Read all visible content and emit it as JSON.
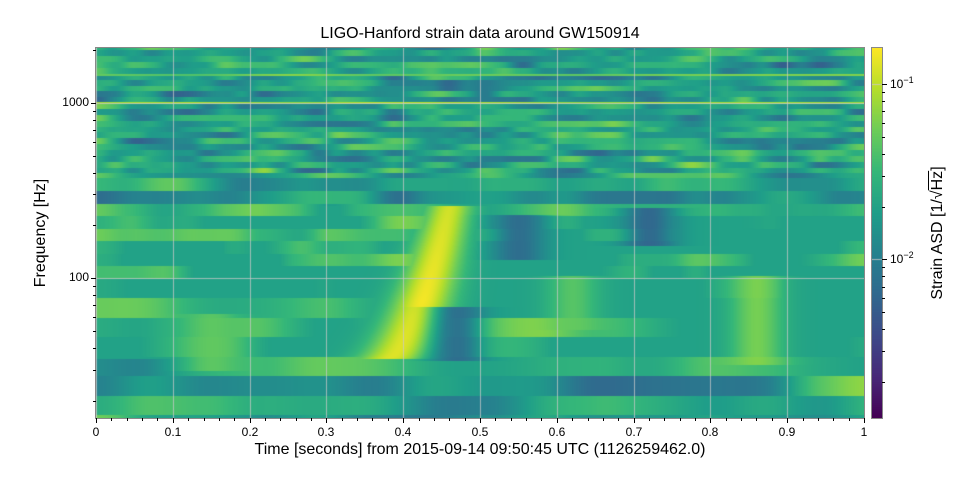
{
  "chart_data": {
    "type": "heatmap",
    "title": "LIGO-Hanford strain data around GW150914",
    "xlabel": "Time [seconds] from 2015-09-14 09:50:45 UTC (1126259462.0)",
    "ylabel": "Frequency [Hz]",
    "colorbar_label_prefix": "Strain ASD [1/",
    "colorbar_label_sqrt": "Hz",
    "colorbar_label_suffix": "]",
    "colormap": "viridis",
    "xlim": [
      0,
      1
    ],
    "ylim": [
      16,
      2048
    ],
    "yscale": "log",
    "clim": [
      0.00125,
      0.16
    ],
    "cscale": "log",
    "grid": true,
    "x_ticks": [
      0,
      0.1,
      0.2,
      0.3,
      0.4,
      0.5,
      0.6,
      0.7,
      0.8,
      0.9,
      1
    ],
    "x_tick_labels": [
      "0",
      "0.1",
      "0.2",
      "0.3",
      "0.4",
      "0.5",
      "0.6",
      "0.7",
      "0.8",
      "0.9",
      "1"
    ],
    "y_ticks": [
      100,
      1000
    ],
    "y_tick_labels": [
      "100",
      "1000"
    ],
    "colorbar_ticks": [
      0.01,
      0.1
    ],
    "colorbar_tick_labels": [
      {
        "base": "10",
        "exp": "−2"
      },
      {
        "base": "10",
        "exp": "−1"
      }
    ],
    "features": [
      {
        "name": "chirp",
        "description": "bright yellow chirp rising from ~35 Hz to ~250 Hz",
        "t_start": 0.3,
        "t_end": 0.44,
        "f_start": 35,
        "f_end": 260,
        "peak_value": 0.15,
        "peak_time": 0.39,
        "peak_freq": 75
      },
      {
        "name": "line-1000Hz",
        "description": "persistent narrow line near 1000 Hz",
        "freq": 1000,
        "value": 0.1
      },
      {
        "name": "line-1450Hz",
        "description": "persistent narrow line near 1450 Hz",
        "freq": 1450,
        "value": 0.08
      },
      {
        "name": "blob-0.86s",
        "description": "green vertical blob at ~0.86 s, 40-90 Hz",
        "time": 0.86,
        "f_low": 38,
        "f_high": 90,
        "value": 0.07
      },
      {
        "name": "blob-0.15s",
        "description": "green blob at ~0.15 s, 35-55 Hz",
        "time": 0.15,
        "f_low": 35,
        "f_high": 55,
        "value": 0.05
      },
      {
        "name": "blob-0.62s",
        "description": "green blob at ~0.62 s, 60-90 Hz",
        "time": 0.62,
        "f_low": 60,
        "f_high": 90,
        "value": 0.05
      },
      {
        "name": "dark-0.47s",
        "description": "dark spot at ~0.47 s, 40-60 Hz",
        "time": 0.47,
        "f_low": 40,
        "f_high": 60,
        "value": 0.006
      },
      {
        "name": "dark-0.55s",
        "description": "dark spot at ~0.55 s, 150-200 Hz",
        "time": 0.55,
        "f_low": 150,
        "f_high": 200,
        "value": 0.006
      },
      {
        "name": "dark-0.72s",
        "description": "dark spot at ~0.72 s, 180-220 Hz",
        "time": 0.72,
        "f_low": 180,
        "f_high": 220,
        "value": 0.005
      }
    ],
    "background_value": 0.02
  }
}
